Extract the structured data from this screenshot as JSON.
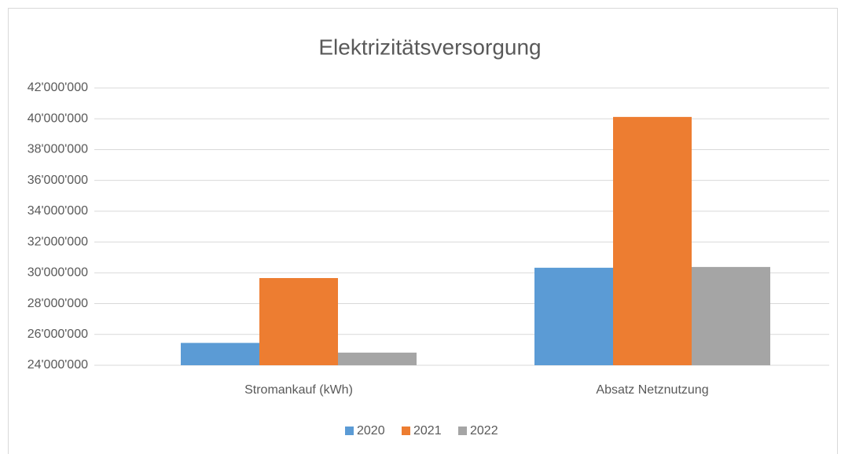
{
  "chart_data": {
    "type": "bar",
    "title": "Elektrizitätsversorgung",
    "categories": [
      "Stromankauf (kWh)",
      "Absatz Netznutzung"
    ],
    "series": [
      {
        "name": "2020",
        "color": "#5b9bd5",
        "values": [
          25450000,
          30330000
        ]
      },
      {
        "name": "2021",
        "color": "#ed7d31",
        "values": [
          29660000,
          40120000
        ]
      },
      {
        "name": "2022",
        "color": "#a5a5a5",
        "values": [
          24820000,
          30380000
        ]
      }
    ],
    "ylim": [
      24000000,
      42000000
    ],
    "yticks": [
      {
        "value": 24000000,
        "label": "24'000'000"
      },
      {
        "value": 26000000,
        "label": "26'000'000"
      },
      {
        "value": 28000000,
        "label": "28'000'000"
      },
      {
        "value": 30000000,
        "label": "30'000'000"
      },
      {
        "value": 32000000,
        "label": "32'000'000"
      },
      {
        "value": 34000000,
        "label": "34'000'000"
      },
      {
        "value": 36000000,
        "label": "36'000'000"
      },
      {
        "value": 38000000,
        "label": "38'000'000"
      },
      {
        "value": 40000000,
        "label": "40'000'000"
      },
      {
        "value": 42000000,
        "label": "42'000'000"
      }
    ],
    "grid": true,
    "legend": "bottom"
  }
}
